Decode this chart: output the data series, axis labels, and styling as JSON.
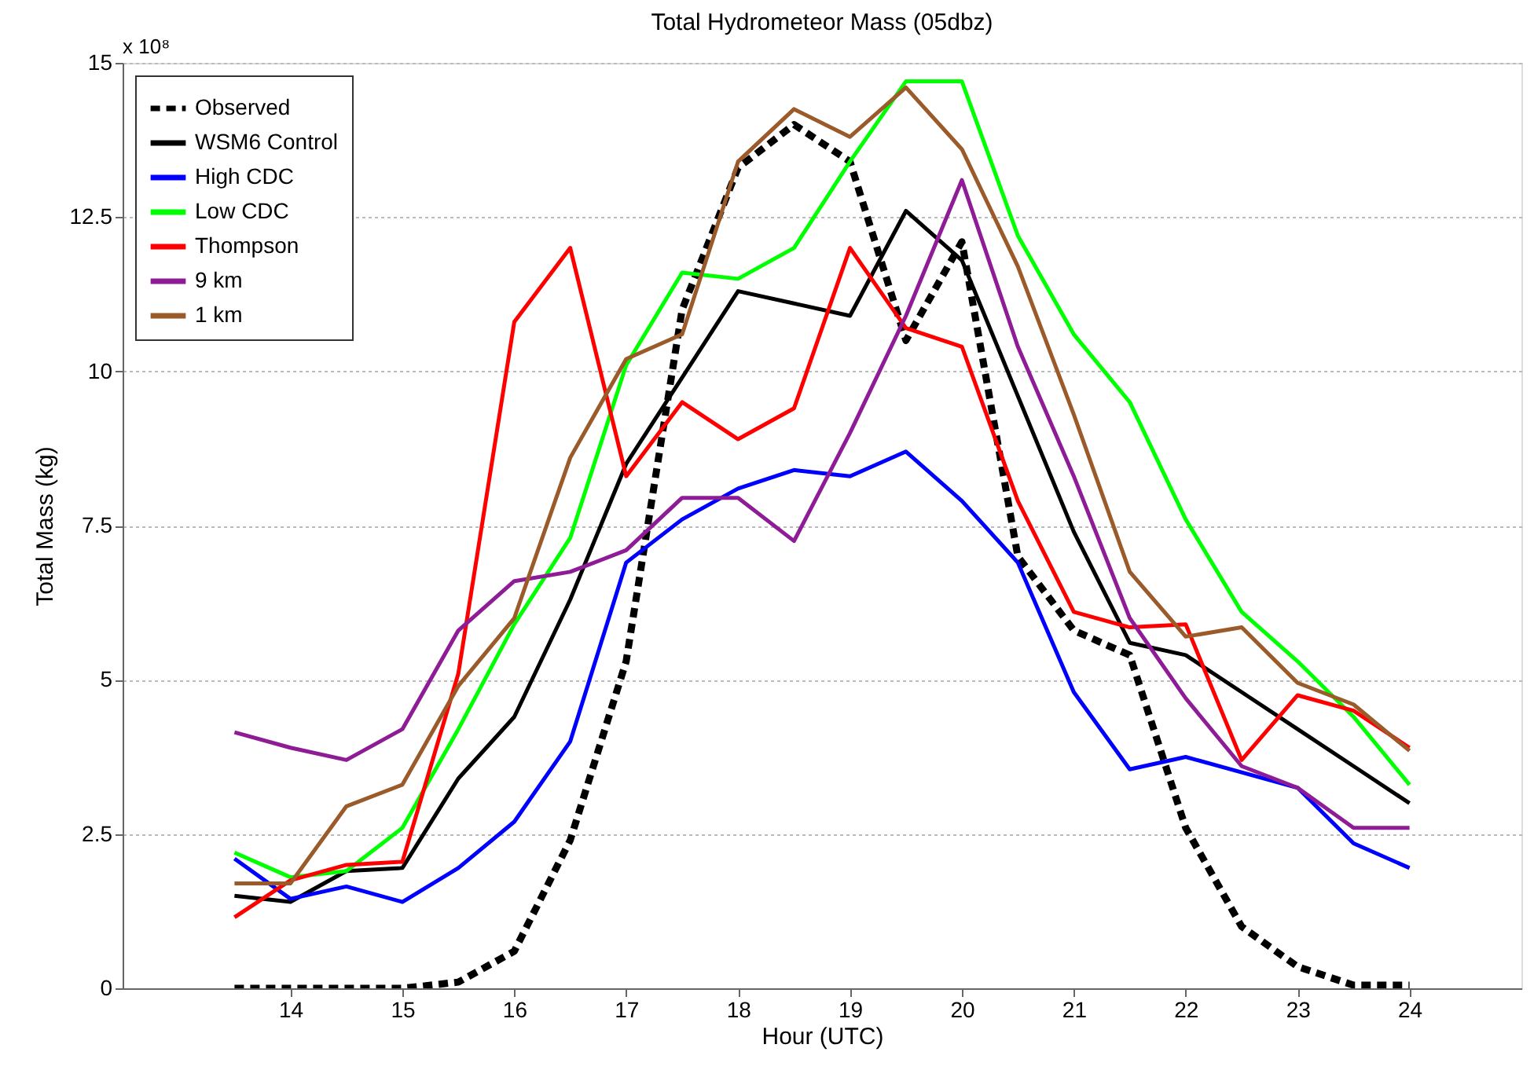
{
  "chart_data": {
    "type": "line",
    "title": "Total Hydrometeor Mass (05dbz)",
    "xlabel": "Hour (UTC)",
    "ylabel": "Total Mass (kg)",
    "annotations": [
      "x 10⁸"
    ],
    "x": [
      13.5,
      14,
      14.5,
      15,
      15.5,
      16,
      16.5,
      17,
      17.5,
      18,
      18.5,
      19,
      19.5,
      20,
      20.5,
      21,
      21.5,
      22,
      22.5,
      23,
      23.5,
      24
    ],
    "series": [
      {
        "name": "Observed",
        "color": "#000000",
        "line_style": "dashed",
        "values": [
          0,
          0,
          0,
          0,
          0.1,
          0.6,
          2.4,
          5.3,
          11,
          13.3,
          14,
          13.4,
          10.5,
          12.1,
          7,
          5.8,
          5.4,
          2.6,
          1.0,
          0.35,
          0.05,
          0.05
        ]
      },
      {
        "name": "WSM6 Control",
        "color": "#000000",
        "line_style": "solid",
        "values": [
          1.5,
          1.4,
          1.9,
          1.95,
          3.4,
          4.4,
          6.3,
          8.5,
          9.9,
          11.3,
          11.1,
          10.9,
          12.6,
          11.8,
          9.6,
          7.4,
          5.6,
          5.4,
          4.8,
          4.2,
          3.6,
          3.0
        ]
      },
      {
        "name": "High CDC",
        "color": "#0000ff",
        "line_style": "solid",
        "values": [
          2.1,
          1.45,
          1.65,
          1.4,
          1.95,
          2.7,
          4.0,
          6.9,
          7.6,
          8.1,
          8.4,
          8.3,
          8.7,
          7.9,
          6.9,
          4.8,
          3.55,
          3.75,
          3.5,
          3.25,
          2.35,
          1.95
        ]
      },
      {
        "name": "Low CDC",
        "color": "#00ff00",
        "line_style": "solid",
        "values": [
          2.2,
          1.8,
          1.9,
          2.6,
          4.2,
          5.9,
          7.3,
          10.1,
          11.6,
          11.5,
          12.0,
          13.4,
          14.7,
          14.7,
          12.2,
          10.6,
          9.5,
          7.6,
          6.1,
          5.3,
          4.4,
          3.3
        ]
      },
      {
        "name": "Thompson",
        "color": "#ff0000",
        "line_style": "solid",
        "values": [
          1.15,
          1.75,
          2.0,
          2.05,
          5.1,
          10.8,
          12.0,
          8.3,
          9.5,
          8.9,
          9.4,
          12.0,
          10.7,
          10.4,
          7.9,
          6.1,
          5.85,
          5.9,
          3.7,
          4.75,
          4.5,
          3.9
        ]
      },
      {
        "name": "9 km",
        "color": "#8e1c96",
        "line_style": "solid",
        "values": [
          4.15,
          3.9,
          3.7,
          4.2,
          5.8,
          6.6,
          6.75,
          7.1,
          7.95,
          7.95,
          7.25,
          9.0,
          10.9,
          13.1,
          10.4,
          8.3,
          6.0,
          4.7,
          3.6,
          3.25,
          2.6,
          2.6
        ]
      },
      {
        "name": "1 km",
        "color": "#9a5a2a",
        "line_style": "solid",
        "values": [
          1.7,
          1.7,
          2.95,
          3.3,
          4.9,
          6.0,
          8.6,
          10.2,
          10.6,
          13.4,
          14.25,
          13.8,
          14.6,
          13.6,
          11.7,
          9.3,
          6.75,
          5.7,
          5.85,
          4.95,
          4.6,
          3.85
        ]
      }
    ],
    "xlim": [
      12.5,
      25
    ],
    "xticks": [
      14,
      15,
      16,
      17,
      18,
      19,
      20,
      21,
      22,
      23,
      24
    ],
    "ylim": [
      0,
      15
    ],
    "yticks": [
      0,
      {
        "value": 2.5,
        "label": "2.5"
      },
      5,
      {
        "value": 7.5,
        "label": "7.5"
      },
      10,
      {
        "value": 12.5,
        "label": "12.5"
      },
      15
    ],
    "grid": "y",
    "legend": "top left",
    "marker": "none"
  }
}
